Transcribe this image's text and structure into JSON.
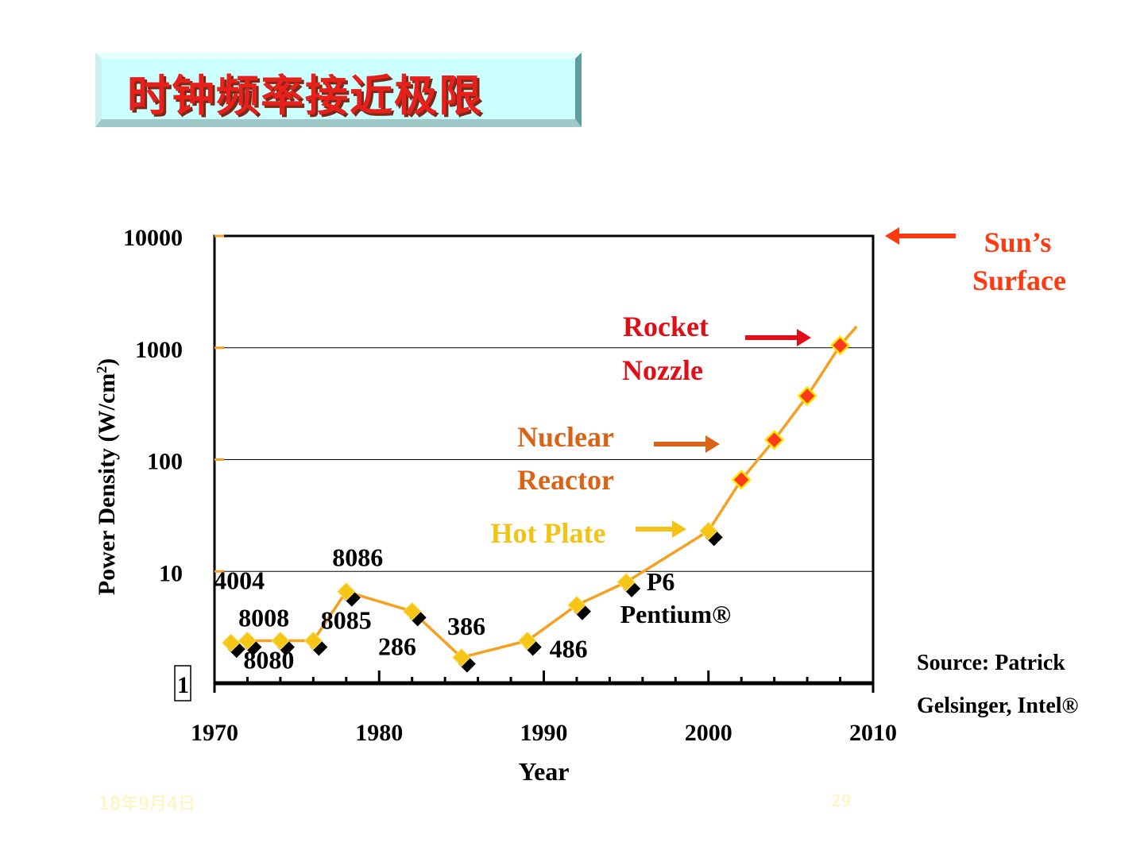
{
  "slide": {
    "title": "时钟频率接近极限",
    "footer_date": "18年9月4日",
    "page_number": "29"
  },
  "chart_data": {
    "type": "line",
    "xlabel": "Year",
    "ylabel": "Power Density (W/cm",
    "ylabel_sup": "2",
    "ylabel_close": ")",
    "yscale": "log",
    "xlim": [
      1970,
      2010
    ],
    "ylim": [
      1,
      10000
    ],
    "x_ticks": [
      "1970",
      "1980",
      "1990",
      "2000",
      "2010"
    ],
    "y_ticks": [
      "10000",
      "1000",
      "100",
      "10",
      "1"
    ],
    "colors": {
      "line": "#f5a020",
      "yellow_marker": "#f5c518",
      "red_marker": "#ff3a1a",
      "shadow": "#000000"
    },
    "points": [
      {
        "x": 1971,
        "y": 2.3,
        "marker": "yellow"
      },
      {
        "x": 1972,
        "y": 2.4,
        "marker": "yellow"
      },
      {
        "x": 1974,
        "y": 2.4,
        "marker": "yellow"
      },
      {
        "x": 1976,
        "y": 2.4,
        "marker": "yellow"
      },
      {
        "x": 1978,
        "y": 6.6,
        "marker": "yellow"
      },
      {
        "x": 1982,
        "y": 4.4,
        "marker": "yellow"
      },
      {
        "x": 1985,
        "y": 1.7,
        "marker": "yellow"
      },
      {
        "x": 1989,
        "y": 2.4,
        "marker": "yellow"
      },
      {
        "x": 1992,
        "y": 5.0,
        "marker": "yellow"
      },
      {
        "x": 1995,
        "y": 8.0,
        "marker": "yellow"
      },
      {
        "x": 2000,
        "y": 23,
        "marker": "yellow"
      },
      {
        "x": 2002,
        "y": 66,
        "marker": "red"
      },
      {
        "x": 2004,
        "y": 150,
        "marker": "red"
      },
      {
        "x": 2006,
        "y": 370,
        "marker": "red"
      },
      {
        "x": 2008,
        "y": 1050,
        "marker": "red"
      }
    ],
    "trend_end": {
      "x": 2009,
      "y": 1550
    },
    "point_labels": [
      {
        "text": "4004",
        "x": 1971.5,
        "y": 8.2
      },
      {
        "text": "8008",
        "x": 1973.0,
        "y": 3.8
      },
      {
        "text": "8080",
        "x": 1973.3,
        "y": 1.6
      },
      {
        "text": "8085",
        "x": 1978.0,
        "y": 3.6
      },
      {
        "text": "8086",
        "x": 1978.7,
        "y": 13.2
      },
      {
        "text": "286",
        "x": 1981.1,
        "y": 2.1
      },
      {
        "text": "386",
        "x": 1985.3,
        "y": 3.2
      },
      {
        "text": "486",
        "x": 1991.5,
        "y": 2.0
      },
      {
        "text": "P6",
        "x": 1997.1,
        "y": 8.0
      },
      {
        "text": "Pentium®",
        "x": 1998.0,
        "y": 4.1
      }
    ],
    "annotations": {
      "hot_plate": "Hot Plate",
      "nuclear": "Nuclear",
      "reactor": "Reactor",
      "rocket": "Rocket",
      "nozzle": "Nozzle",
      "sun_line1": "Sun’s",
      "sun_line2": "Surface",
      "source_line1": "Source: Patrick",
      "source_line2": "Gelsinger, Intel®"
    },
    "annotation_colors": {
      "hot_plate": "#f2c315",
      "nuclear": "#d96418",
      "rocket": "#e00e16",
      "sun": "#ff3a10",
      "source": "#000000"
    },
    "grid": true
  }
}
